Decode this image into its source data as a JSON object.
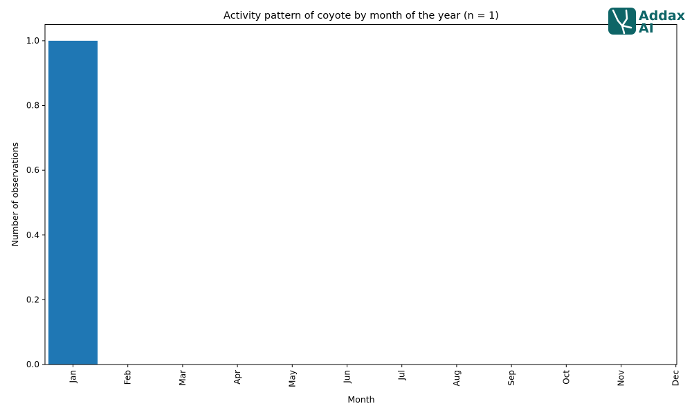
{
  "chart_data": {
    "type": "bar",
    "title": "Activity pattern of coyote by month of the year (n = 1)",
    "xlabel": "Month",
    "ylabel": "Number of observations",
    "categories": [
      "Jan",
      "Feb",
      "Mar",
      "Apr",
      "May",
      "Jun",
      "Jul",
      "Aug",
      "Sep",
      "Oct",
      "Nov",
      "Dec"
    ],
    "values": [
      1,
      0,
      0,
      0,
      0,
      0,
      0,
      0,
      0,
      0,
      0,
      0
    ],
    "ylim": [
      0,
      1.05
    ],
    "yticks": [
      0.0,
      0.2,
      0.4,
      0.6,
      0.8,
      1.0
    ],
    "ytick_labels": [
      "0.0",
      "0.2",
      "0.4",
      "0.6",
      "0.8",
      "1.0"
    ],
    "grid": false,
    "bar_color": "#1f77b4"
  },
  "logo": {
    "line1": "Addax",
    "line2": "AI",
    "color": "#0e6567"
  }
}
